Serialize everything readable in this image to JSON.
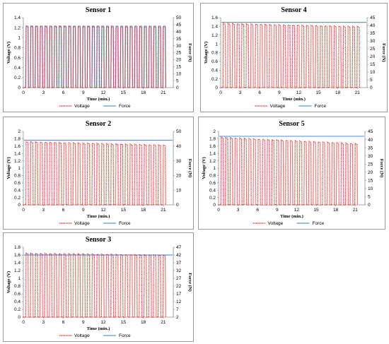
{
  "colors": {
    "voltage": "#e8201c",
    "force": "#5b9bd5",
    "axis": "#8c8c8c",
    "panel_border": "#9a9a9a"
  },
  "chart_data": [
    {
      "type": "line",
      "title": "Sensor 1",
      "xlabel": "Time (min.)",
      "ylabel": "Voltage (V)",
      "y2label": "Force (N)",
      "xlim": [
        0,
        22.5
      ],
      "xticks": [
        0,
        3,
        6,
        9,
        12,
        15,
        18,
        21
      ],
      "ylim": [
        0,
        1.4
      ],
      "yticks": [
        0,
        0.2,
        0.4,
        0.6,
        0.8,
        1,
        1.2,
        1.4
      ],
      "y2lim": [
        0,
        50
      ],
      "y2ticks": [
        0,
        5,
        10,
        15,
        20,
        25,
        30,
        35,
        40,
        45,
        50
      ],
      "grid": false,
      "legend_position": "bottom",
      "series": [
        {
          "name": "Voltage",
          "axis": "left",
          "style": "dotted",
          "pulse_count": 30,
          "period_min": 0.71,
          "peak_start": 1.23,
          "peak_end": 1.22,
          "baseline": 0
        },
        {
          "name": "Force",
          "axis": "right",
          "style": "solid",
          "pulse_count": 30,
          "period_min": 0.71,
          "peak": 44,
          "baseline": 0
        }
      ]
    },
    {
      "type": "line",
      "title": "Sensor 4",
      "xlabel": "Time (min.)",
      "ylabel": "Voltage (V)",
      "y2label": "Force (N)",
      "xlim": [
        0,
        22.5
      ],
      "xticks": [
        0,
        3,
        6,
        9,
        12,
        15,
        18,
        21
      ],
      "ylim": [
        0,
        1.6
      ],
      "yticks": [
        0,
        0.2,
        0.4,
        0.6,
        0.8,
        1,
        1.2,
        1.4,
        1.6
      ],
      "y2lim": [
        0,
        45
      ],
      "y2ticks": [
        0,
        5,
        10,
        15,
        20,
        25,
        30,
        35,
        40,
        45
      ],
      "grid": false,
      "legend_position": "bottom",
      "series": [
        {
          "name": "Voltage",
          "axis": "left",
          "style": "dotted",
          "pulse_count": 30,
          "period_min": 0.71,
          "peak_start": 1.47,
          "peak_end": 1.4,
          "baseline": 0
        },
        {
          "name": "Force",
          "axis": "right",
          "style": "solid",
          "constant": 42
        }
      ]
    },
    {
      "type": "line",
      "title": "Sensor 2",
      "xlabel": "Time (min.)",
      "ylabel": "Voltage (V)",
      "y2label": "Force (N)",
      "xlim": [
        0,
        22.5
      ],
      "xticks": [
        0,
        3,
        6,
        9,
        12,
        15,
        18,
        21
      ],
      "ylim": [
        0,
        2
      ],
      "yticks": [
        0,
        0.2,
        0.4,
        0.6,
        0.8,
        1,
        1.2,
        1.4,
        1.6,
        1.8,
        2
      ],
      "y2lim": [
        0,
        50
      ],
      "y2ticks": [
        0,
        10,
        20,
        30,
        40,
        50
      ],
      "grid": false,
      "legend_position": "bottom",
      "series": [
        {
          "name": "Voltage",
          "axis": "left",
          "style": "dotted",
          "pulse_count": 30,
          "period_min": 0.71,
          "peak_start": 1.72,
          "peak_end": 1.63,
          "baseline": 0
        },
        {
          "name": "Force",
          "axis": "right",
          "style": "solid",
          "constant": 44
        }
      ]
    },
    {
      "type": "line",
      "title": "Sensor 5",
      "xlabel": "Time (min.)",
      "ylabel": "Voltage (V)",
      "y2label": "Force (N)",
      "xlim": [
        0,
        22.5
      ],
      "xticks": [
        0,
        3,
        6,
        9,
        12,
        15,
        18,
        21
      ],
      "ylim": [
        0,
        2
      ],
      "yticks": [
        0,
        0.2,
        0.4,
        0.6,
        0.8,
        1,
        1.2,
        1.4,
        1.6,
        1.8,
        2
      ],
      "y2lim": [
        0,
        45
      ],
      "y2ticks": [
        0,
        5,
        10,
        15,
        20,
        25,
        30,
        35,
        40,
        45
      ],
      "grid": false,
      "legend_position": "bottom",
      "series": [
        {
          "name": "Voltage",
          "axis": "left",
          "style": "dotted",
          "pulse_count": 30,
          "period_min": 0.71,
          "peak_start": 1.84,
          "peak_end": 1.67,
          "baseline": 0
        },
        {
          "name": "Force",
          "axis": "right",
          "style": "solid",
          "constant": 42
        }
      ]
    },
    {
      "type": "line",
      "title": "Sensor 3",
      "xlabel": "Time (min.)",
      "ylabel": "Voltage (V)",
      "y2label": "Force (N)",
      "xlim": [
        0,
        22.5
      ],
      "xticks": [
        0,
        3,
        6,
        9,
        12,
        15,
        18,
        21
      ],
      "ylim": [
        0,
        1.8
      ],
      "yticks": [
        0,
        0.2,
        0.4,
        0.6,
        0.8,
        1,
        1.2,
        1.4,
        1.6,
        1.8
      ],
      "y2lim": [
        2,
        47
      ],
      "y2ticks": [
        2,
        7,
        12,
        17,
        22,
        27,
        32,
        37,
        42,
        47
      ],
      "grid": false,
      "legend_position": "bottom",
      "series": [
        {
          "name": "Voltage",
          "axis": "left",
          "style": "dotted",
          "pulse_count": 30,
          "period_min": 0.71,
          "peak_start": 1.65,
          "peak_end": 1.6,
          "baseline": 0
        },
        {
          "name": "Force",
          "axis": "right",
          "style": "solid",
          "constant": 42
        }
      ]
    }
  ]
}
